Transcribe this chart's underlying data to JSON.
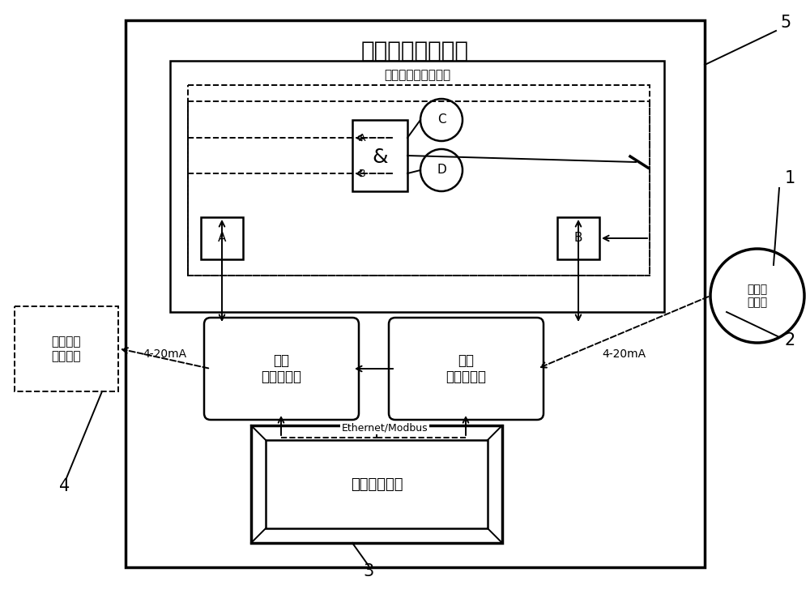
{
  "title": "热值预测分析系统",
  "fault_box_label": "故障诊断与应急处理",
  "data_match_label": "数据\n匹配与输出",
  "data_collect_label": "数据\n采集与转换",
  "predict_label": "预测分析装置",
  "gas_turbine_label": "燃气轮机\n控制系统",
  "heat_detect_label": "热值检\n测装置",
  "ethernet_label": "Ethernet/Modbus",
  "signal_label_left": "4-20mA",
  "signal_label_right": "4-20mA",
  "label_1": "1",
  "label_2": "2",
  "label_3": "3",
  "label_4": "4",
  "label_5": "5",
  "bg_color": "#ffffff"
}
